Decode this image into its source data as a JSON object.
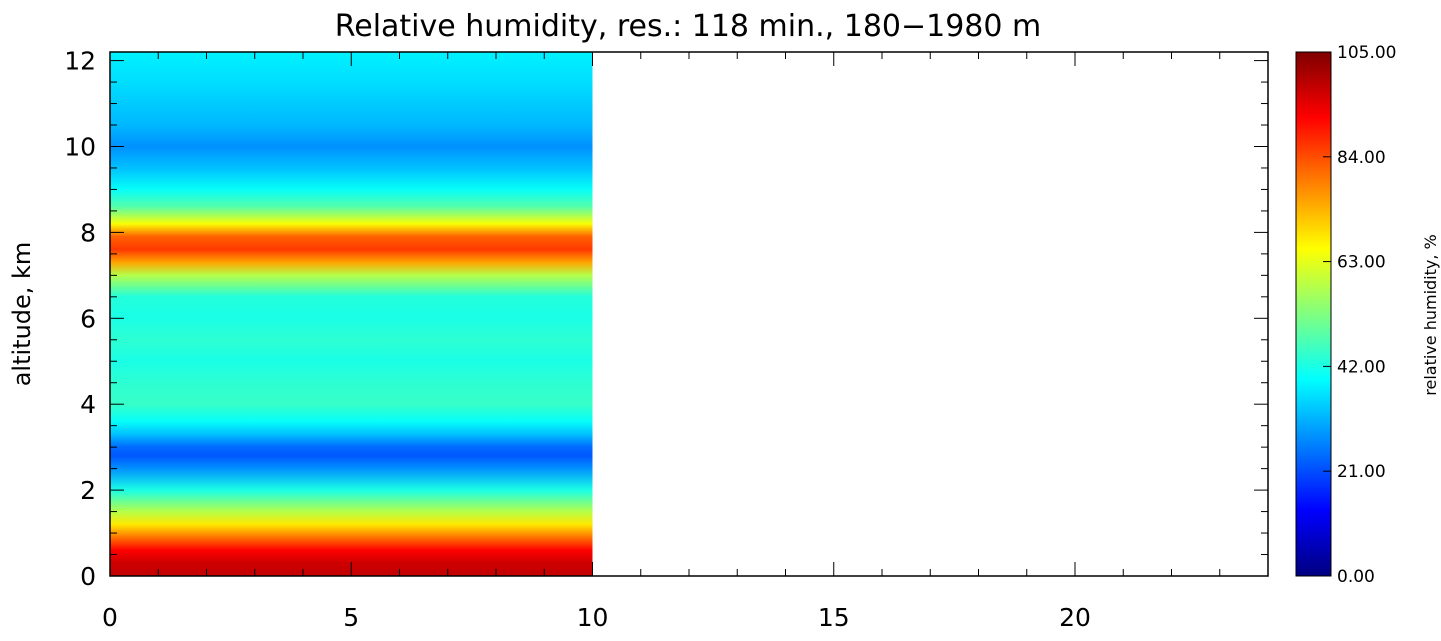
{
  "chart_data": {
    "type": "heatmap",
    "title": "Relative humidity, res.: 118 min., 180−1980 m",
    "xlabel": "",
    "ylabel": "altitude, km",
    "xlim": [
      0,
      24
    ],
    "ylim": [
      0,
      12.2
    ],
    "x_ticks": [
      0,
      5,
      10,
      15,
      20
    ],
    "y_ticks": [
      0,
      2,
      4,
      6,
      8,
      10,
      12
    ],
    "data_extent_x": [
      0,
      10
    ],
    "colorbar": {
      "label": "relative humidity, %",
      "range": [
        0,
        105
      ],
      "ticks": [
        "0.00",
        "21.00",
        "42.00",
        "63.00",
        "84.00",
        "105.00"
      ],
      "colors": [
        "#00007f",
        "#0000ff",
        "#0080ff",
        "#00ffff",
        "#80ff80",
        "#ffff00",
        "#ff8000",
        "#ff0000",
        "#7f0000"
      ]
    },
    "rh_profile": {
      "altitude_km": [
        0.0,
        0.3,
        0.6,
        0.9,
        1.2,
        1.5,
        2.0,
        2.5,
        2.8,
        3.0,
        3.3,
        3.6,
        4.0,
        4.5,
        5.0,
        5.5,
        6.0,
        6.5,
        7.0,
        7.3,
        7.6,
        7.9,
        8.2,
        8.6,
        9.0,
        9.5,
        10.0,
        10.5,
        11.0,
        11.5,
        12.2
      ],
      "rh_percent": [
        98,
        97,
        92,
        80,
        68,
        58,
        42,
        28,
        22,
        24,
        33,
        40,
        45,
        44,
        42,
        44,
        42,
        43,
        58,
        75,
        86,
        82,
        65,
        48,
        40,
        33,
        28,
        32,
        34,
        36,
        38
      ]
    }
  }
}
